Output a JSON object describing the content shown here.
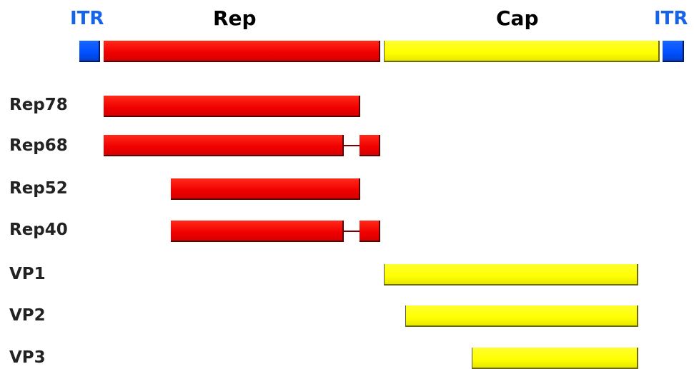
{
  "genome": {
    "itr_left": "ITR",
    "rep_label": "Rep",
    "cap_label": "Cap",
    "itr_right": "ITR"
  },
  "transcripts": [
    {
      "label": "Rep78"
    },
    {
      "label": "Rep68"
    },
    {
      "label": "Rep52"
    },
    {
      "label": "Rep40"
    },
    {
      "label": "VP1"
    },
    {
      "label": "VP2"
    },
    {
      "label": "VP3"
    }
  ],
  "colors": {
    "itr": "#0050ff",
    "rep": "#ff0000",
    "cap": "#ffff00",
    "itr_text": "#1764e8"
  }
}
